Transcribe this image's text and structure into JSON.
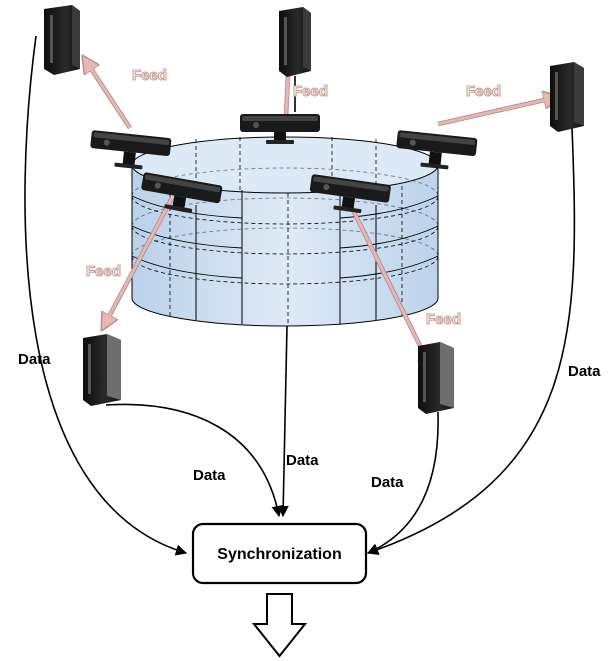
{
  "labels": {
    "feed": "Feed",
    "data": "Data",
    "synchronization": "Synchronization"
  },
  "colors": {
    "feed_arrow": "#e6b8b4",
    "feed_arrow_edge": "#b58f8a",
    "cylinder_fill": "#cde0f2",
    "connector": "#000000",
    "device_body": "#1e1e1e"
  },
  "components": {
    "computers": [
      "pc-1",
      "pc-2",
      "pc-3",
      "pc-4",
      "pc-5"
    ],
    "sensors": [
      "sensor-1",
      "sensor-2",
      "sensor-3",
      "sensor-4",
      "sensor-5",
      "sensor-6"
    ]
  }
}
